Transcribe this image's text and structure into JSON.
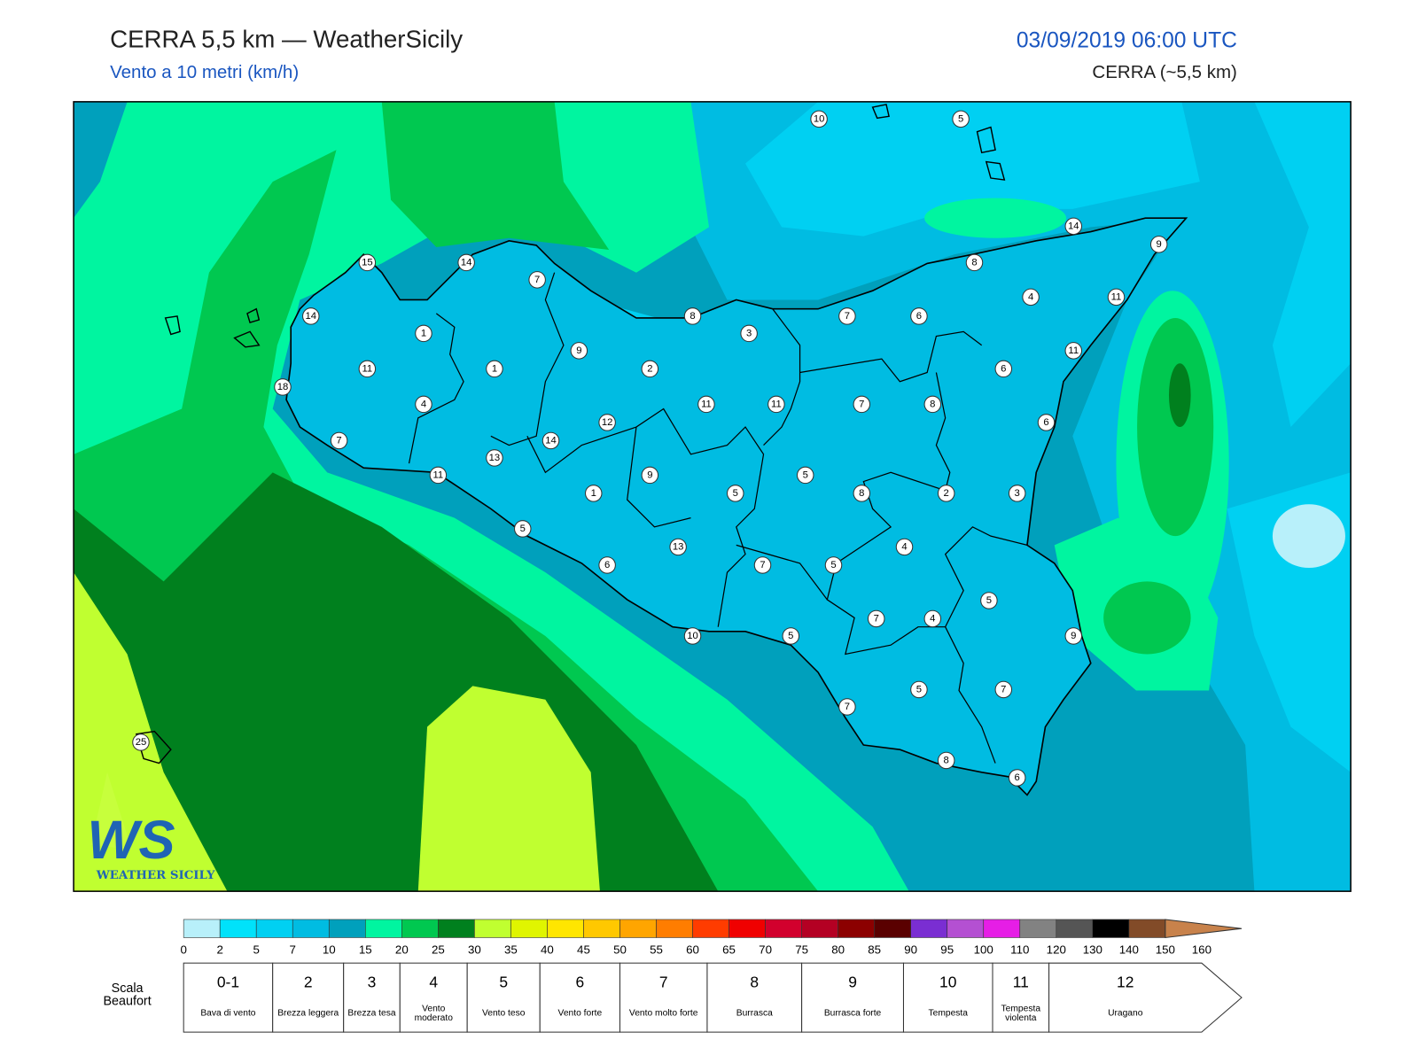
{
  "header": {
    "title": "CERRA 5,5 km — WeatherSicily",
    "subtitle": "Vento a 10 metri (km/h)",
    "datetime": "03/09/2019 06:00 UTC",
    "model": "CERRA (~5,5 km)"
  },
  "map": {
    "labels": [
      10,
      5,
      14,
      9,
      15,
      14,
      7,
      8,
      14,
      1,
      8,
      3,
      7,
      6,
      4,
      11,
      9,
      11,
      11,
      1,
      2,
      6,
      18,
      4,
      11,
      11,
      7,
      8,
      12,
      6,
      7,
      14,
      13,
      11,
      9,
      5,
      1,
      5,
      8,
      2,
      3,
      5,
      4,
      13,
      6,
      7,
      5,
      5,
      7,
      4,
      10,
      5,
      9,
      5,
      7,
      7,
      8,
      6,
      25
    ]
  },
  "logo": {
    "initials": "WS",
    "text": "WEATHER SICILY"
  },
  "colorbar": {
    "ticks": [
      0,
      2,
      5,
      7,
      10,
      15,
      20,
      25,
      30,
      35,
      40,
      45,
      50,
      55,
      60,
      65,
      70,
      75,
      80,
      85,
      90,
      95,
      100,
      110,
      120,
      130,
      140,
      150,
      160
    ],
    "colors": [
      "#b8f0fa",
      "#00e2fa",
      "#00d0f2",
      "#00bce2",
      "#00a0bc",
      "#00f5a0",
      "#00c850",
      "#00801e",
      "#c0ff30",
      "#e0f500",
      "#ffe600",
      "#ffc800",
      "#ffa500",
      "#ff7d00",
      "#ff3c00",
      "#f00000",
      "#d2002d",
      "#b40023",
      "#8c0000",
      "#5a0000",
      "#7a2ed2",
      "#b450d2",
      "#e61ee6",
      "#828282",
      "#555555",
      "#000000",
      "#824b28",
      "#c8824b"
    ]
  },
  "beaufort": {
    "label": [
      "Scala",
      "Beaufort"
    ],
    "levels": [
      {
        "force": "0-1",
        "name": "Bava di vento"
      },
      {
        "force": "2",
        "name": "Brezza leggera"
      },
      {
        "force": "3",
        "name": "Brezza tesa"
      },
      {
        "force": "4",
        "name": "Vento moderato"
      },
      {
        "force": "5",
        "name": "Vento teso"
      },
      {
        "force": "6",
        "name": "Vento forte"
      },
      {
        "force": "7",
        "name": "Vento molto forte"
      },
      {
        "force": "8",
        "name": "Burrasca"
      },
      {
        "force": "9",
        "name": "Burrasca forte"
      },
      {
        "force": "10",
        "name": "Tempesta"
      },
      {
        "force": "11",
        "name": "Tempesta violenta"
      },
      {
        "force": "12",
        "name": "Uragano"
      }
    ]
  }
}
